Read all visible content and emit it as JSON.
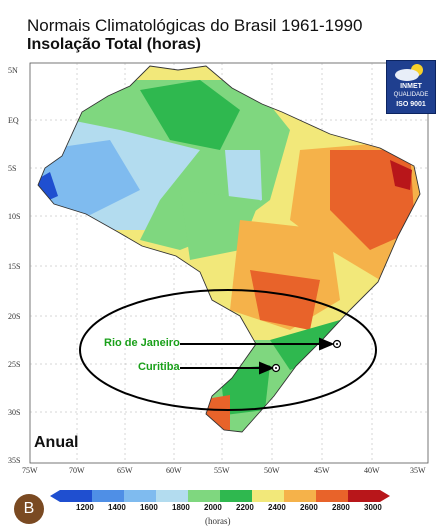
{
  "title_line1": "Normais Climatológicas do Brasil 1961-1990",
  "title_line2": "Insolação Total (horas)",
  "lat_labels": [
    "5N",
    "EQ",
    "5S",
    "10S",
    "15S",
    "20S",
    "25S",
    "30S",
    "35S"
  ],
  "lon_labels": [
    "75W",
    "70W",
    "65W",
    "60W",
    "55W",
    "50W",
    "45W",
    "40W",
    "35W"
  ],
  "logo": {
    "name": "INMET",
    "line2": "QUALIDADE",
    "line3": "ISO 9001"
  },
  "cities": {
    "rio": "Rio de Janeiro",
    "curitiba": "Curitiba"
  },
  "period": "Anual",
  "badge": "B",
  "legend": {
    "ticks": [
      "1200",
      "1400",
      "1600",
      "1800",
      "2000",
      "2200",
      "2400",
      "2600",
      "2800",
      "3000"
    ],
    "unit": "(horas)",
    "colors": [
      "#1f4fd0",
      "#4f8fe6",
      "#7fbbef",
      "#b3dcef",
      "#7fd77f",
      "#2fb84f",
      "#f2e87a",
      "#f5b24a",
      "#e8632a",
      "#b8161a"
    ]
  }
}
